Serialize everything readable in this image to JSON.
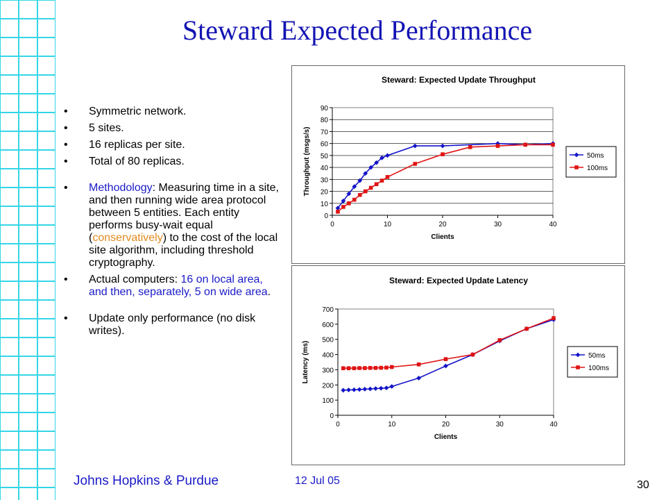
{
  "slide": {
    "title": "Steward Expected Performance",
    "bullets": [
      {
        "text": "Symmetric network."
      },
      {
        "text": "5 sites."
      },
      {
        "text": "16 replicas per site."
      },
      {
        "text": "Total of 80 replicas."
      }
    ],
    "methodology": {
      "label": "Methodology",
      "text_a": ": Measuring time in a site, and then running wide area protocol between 5 entities. Each entity performs busy-wait equal (",
      "highlight": "conservatively",
      "text_b": ") to the cost of the local site algorithm, including threshold cryptography."
    },
    "actual": {
      "label": "Actual computers: ",
      "highlight": "16 on local area, and then, separately, 5 on wide area",
      "end": "."
    },
    "update_only": "Update only performance (no disk writes).",
    "footer": {
      "org": "Johns Hopkins & Purdue",
      "date": "12 Jul 05",
      "page": "30"
    }
  },
  "chart_data": [
    {
      "type": "line",
      "title": "Steward: Expected Update Throughput",
      "xlabel": "Clients",
      "ylabel": "Throughput (msgs/s)",
      "xlim": [
        0,
        40
      ],
      "ylim": [
        0,
        90
      ],
      "xticks": [
        0,
        10,
        20,
        30,
        40
      ],
      "yticks": [
        0,
        10,
        20,
        30,
        40,
        50,
        60,
        70,
        80,
        90
      ],
      "grid": true,
      "legend": "right",
      "series": [
        {
          "name": "50ms",
          "color": "#1414c8",
          "marker": "diamond",
          "x": [
            1,
            2,
            3,
            4,
            5,
            6,
            7,
            8,
            9,
            10,
            15,
            20,
            30,
            35,
            40
          ],
          "y": [
            6,
            12,
            18,
            24,
            29,
            35,
            40,
            44,
            48,
            50,
            58,
            58,
            60,
            59,
            60
          ]
        },
        {
          "name": "100ms",
          "color": "#e01414",
          "marker": "square",
          "x": [
            1,
            2,
            3,
            4,
            5,
            6,
            7,
            8,
            9,
            10,
            15,
            20,
            25,
            30,
            35,
            40
          ],
          "y": [
            3,
            7,
            10,
            13,
            17,
            20,
            23,
            26,
            29,
            32,
            43,
            51,
            57,
            58,
            59,
            59
          ]
        }
      ]
    },
    {
      "type": "line",
      "title": "Steward: Expected Update Latency",
      "xlabel": "Clients",
      "ylabel": "Latency (ms)",
      "xlim": [
        0,
        40
      ],
      "ylim": [
        0,
        700
      ],
      "xticks": [
        0,
        10,
        20,
        30,
        40
      ],
      "yticks": [
        0,
        100,
        200,
        300,
        400,
        500,
        600,
        700
      ],
      "grid": false,
      "legend": "right",
      "series": [
        {
          "name": "50ms",
          "color": "#1414c8",
          "marker": "diamond",
          "x": [
            1,
            2,
            3,
            4,
            5,
            6,
            7,
            8,
            9,
            10,
            15,
            20,
            25,
            30,
            35,
            40
          ],
          "y": [
            165,
            167,
            168,
            170,
            172,
            174,
            176,
            178,
            180,
            190,
            245,
            325,
            400,
            490,
            570,
            630
          ]
        },
        {
          "name": "100ms",
          "color": "#e01414",
          "marker": "square",
          "x": [
            1,
            2,
            3,
            4,
            5,
            6,
            7,
            8,
            9,
            10,
            15,
            20,
            25,
            30,
            35,
            40
          ],
          "y": [
            310,
            310,
            310,
            311,
            311,
            312,
            312,
            313,
            314,
            318,
            335,
            370,
            400,
            495,
            570,
            640
          ]
        }
      ]
    }
  ]
}
